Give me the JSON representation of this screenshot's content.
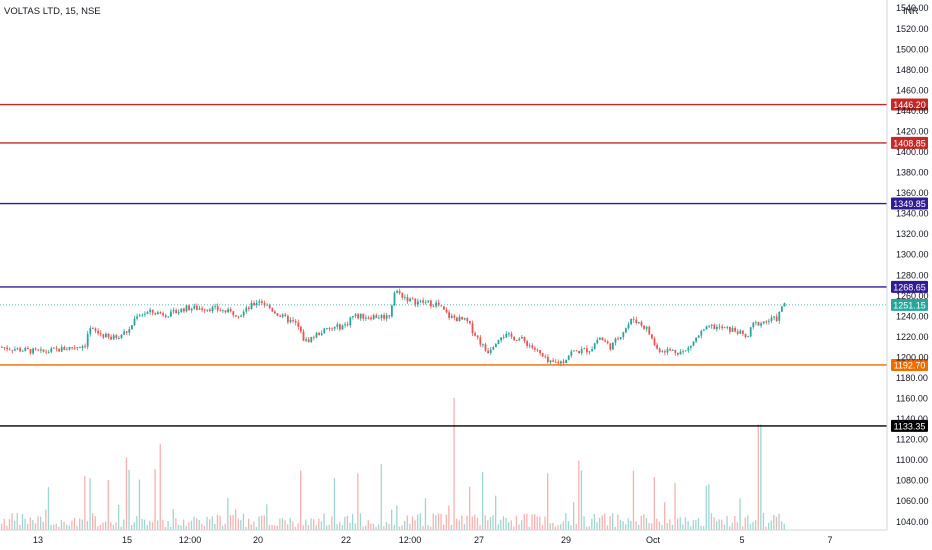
{
  "header": {
    "title": "VOLTAS LTD, 15, NSE"
  },
  "chart_data": {
    "type": "candlestick",
    "currency_label": "INR",
    "price_axis": {
      "ylim": [
        1032,
        1548
      ],
      "ticks": [
        1040,
        1060,
        1080,
        1100,
        1120,
        1140,
        1160,
        1180,
        1200,
        1220,
        1240,
        1260,
        1280,
        1300,
        1320,
        1340,
        1360,
        1380,
        1400,
        1420,
        1440,
        1460,
        1480,
        1500,
        1520,
        1540
      ],
      "tick_labels": [
        "1040.00",
        "1060.00",
        "1080.00",
        "1100.00",
        "1120.00",
        "1140.00",
        "1160.00",
        "1180.00",
        "1200.00",
        "1220.00",
        "1240.00",
        "1260.00",
        "1280.00",
        "1300.00",
        "1320.00",
        "1340.00",
        "1360.00",
        "1380.00",
        "1400.00",
        "1420.00",
        "1440.00",
        "1460.00",
        "1480.00",
        "1500.00",
        "1520.00",
        "1540.00"
      ]
    },
    "time_axis": {
      "labels": [
        "13",
        "15",
        "12:00",
        "20",
        "22",
        "12:00",
        "27",
        "29",
        "Oct",
        "5",
        "7"
      ]
    },
    "horizontal_levels": [
      {
        "price": 1446.2,
        "label": "1446.20",
        "color": "#c62828"
      },
      {
        "price": 1408.85,
        "label": "1408.85",
        "color": "#c62828"
      },
      {
        "price": 1349.85,
        "label": "1349.85",
        "color": "#311b92"
      },
      {
        "price": 1268.65,
        "label": "1268.65",
        "color": "#311b92"
      },
      {
        "price": 1192.7,
        "label": "1192.70",
        "color": "#ef6c00"
      },
      {
        "price": 1133.35,
        "label": "1133.35",
        "color": "#000000"
      }
    ],
    "last_price": {
      "price": 1251.15,
      "label": "1251.15",
      "color": "#26a69a"
    },
    "price_path_keypoints": [
      [
        0,
        1210
      ],
      [
        40,
        1205
      ],
      [
        60,
        1208
      ],
      [
        84,
        1212
      ],
      [
        88,
        1228
      ],
      [
        110,
        1218
      ],
      [
        128,
        1226
      ],
      [
        136,
        1242
      ],
      [
        150,
        1244
      ],
      [
        170,
        1242
      ],
      [
        184,
        1248
      ],
      [
        210,
        1248
      ],
      [
        228,
        1244
      ],
      [
        240,
        1242
      ],
      [
        258,
        1256
      ],
      [
        280,
        1240
      ],
      [
        296,
        1232
      ],
      [
        304,
        1215
      ],
      [
        320,
        1225
      ],
      [
        346,
        1232
      ],
      [
        350,
        1240
      ],
      [
        388,
        1240
      ],
      [
        394,
        1265
      ],
      [
        410,
        1255
      ],
      [
        436,
        1252
      ],
      [
        448,
        1240
      ],
      [
        466,
        1235
      ],
      [
        486,
        1205
      ],
      [
        500,
        1222
      ],
      [
        520,
        1218
      ],
      [
        534,
        1208
      ],
      [
        548,
        1194
      ],
      [
        562,
        1196
      ],
      [
        570,
        1205
      ],
      [
        590,
        1208
      ],
      [
        598,
        1220
      ],
      [
        610,
        1210
      ],
      [
        632,
        1238
      ],
      [
        646,
        1228
      ],
      [
        656,
        1208
      ],
      [
        684,
        1205
      ],
      [
        700,
        1224
      ],
      [
        710,
        1230
      ],
      [
        736,
        1226
      ],
      [
        746,
        1218
      ],
      [
        752,
        1232
      ],
      [
        776,
        1238
      ],
      [
        784,
        1254
      ]
    ],
    "volume_spikes": [
      [
        454,
        1.0
      ],
      [
        759,
        0.8
      ],
      [
        125,
        0.55
      ],
      [
        160,
        0.65
      ],
      [
        300,
        0.45
      ],
      [
        580,
        0.45
      ],
      [
        633,
        0.45
      ],
      [
        653,
        0.4
      ]
    ],
    "colors": {
      "up": "#26a69a",
      "down": "#ef5350",
      "grid": "#e1e3e8"
    },
    "grid": false
  }
}
